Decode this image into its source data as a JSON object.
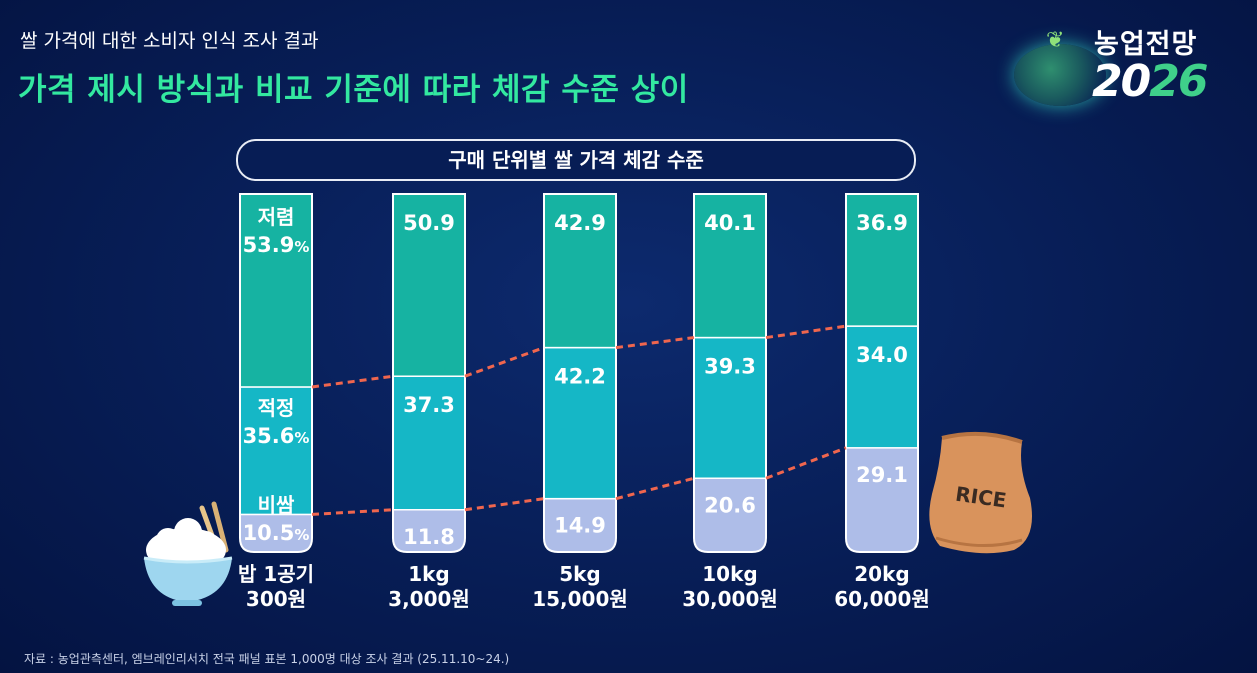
{
  "header": {
    "subtitle": "쌀 가격에 대한 소비자 인식 조사 결과",
    "title": "가격 제시 방식과 비교 기준에 따라 체감 수준 상이"
  },
  "logo": {
    "line1": "농업전망",
    "line2_a": "20",
    "line2_b": "26"
  },
  "source": "자료 : 농업관측센터, 엠브레인리서치  전국 패널 표본 1,000명 대상 조사 결과 (25.11.10~24.)",
  "sack_label": "RICE",
  "chart_data": {
    "type": "bar",
    "stacked": true,
    "percent": true,
    "title": "구매 단위별 쌀 가격 체감 수준",
    "categories": [
      {
        "line1": "밥 1공기",
        "line2": "300원"
      },
      {
        "line1": "1kg",
        "line2": "3,000원"
      },
      {
        "line1": "5kg",
        "line2": "15,000원"
      },
      {
        "line1": "10kg",
        "line2": "30,000원"
      },
      {
        "line1": "20kg",
        "line2": "60,000원"
      }
    ],
    "series": [
      {
        "name": "비쌈",
        "color": "#aebde8",
        "values": [
          10.5,
          11.8,
          14.9,
          20.6,
          29.1
        ],
        "labels": [
          "10.5",
          "11.8",
          "14.9",
          "20.6",
          "29.1"
        ]
      },
      {
        "name": "적정",
        "color": "#15b7c6",
        "values": [
          35.6,
          37.3,
          42.2,
          39.3,
          34.0
        ],
        "labels": [
          "35.6",
          "37.3",
          "42.2",
          "39.3",
          "34.0"
        ]
      },
      {
        "name": "저렴",
        "color": "#16b3a2",
        "values": [
          53.9,
          50.9,
          42.9,
          40.1,
          36.9
        ],
        "labels": [
          "53.9",
          "50.9",
          "42.9",
          "40.1",
          "36.9"
        ]
      }
    ],
    "percent_suffix": "%",
    "ylim": [
      0,
      100
    ],
    "connector_color": "#f0664e"
  }
}
